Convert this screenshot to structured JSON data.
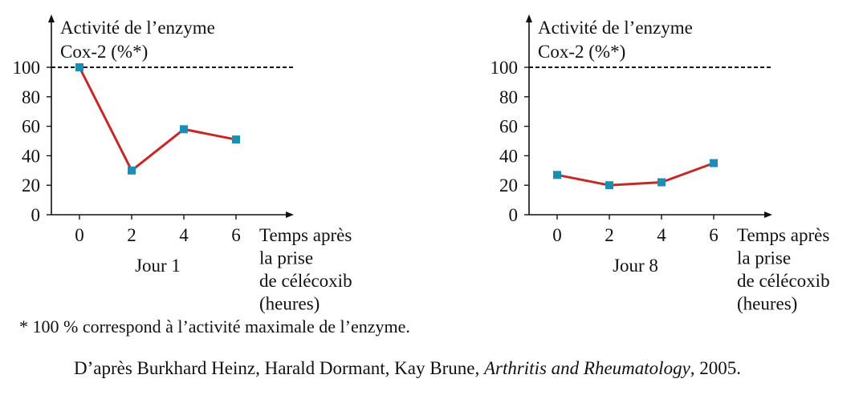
{
  "chart_data": [
    {
      "type": "line",
      "ylabel_line1": "Activité de l’enzyme",
      "ylabel_line2": "Cox-2 (%*)",
      "xlabel_lines": [
        "Temps après",
        "la prise",
        "de célécoxib",
        "(heures)"
      ],
      "caption": "Jour 1",
      "x": [
        0,
        2,
        4,
        6
      ],
      "y": [
        100,
        30,
        58,
        51
      ],
      "x_ticks": [
        "0",
        "2",
        "4",
        "6"
      ],
      "y_ticks": [
        "0",
        "20",
        "40",
        "60",
        "80",
        "100"
      ],
      "ylim": [
        0,
        100
      ],
      "reference_line": 100,
      "line_color": "#c62828",
      "marker_color": "#1a8fb3"
    },
    {
      "type": "line",
      "ylabel_line1": "Activité de l’enzyme",
      "ylabel_line2": "Cox-2 (%*)",
      "xlabel_lines": [
        "Temps après",
        "la prise",
        "de célécoxib",
        "(heures)"
      ],
      "caption": "Jour 8",
      "x": [
        0,
        2,
        4,
        6
      ],
      "y": [
        27,
        20,
        22,
        35
      ],
      "x_ticks": [
        "0",
        "2",
        "4",
        "6"
      ],
      "y_ticks": [
        "0",
        "20",
        "40",
        "60",
        "80",
        "100"
      ],
      "ylim": [
        0,
        100
      ],
      "reference_line": 100,
      "line_color": "#c62828",
      "marker_color": "#1a8fb3"
    }
  ],
  "footnote": "* 100 % correspond à l’activité maximale de l’enzyme.",
  "source": {
    "prefix": "D’après Burkhard Heinz, Harald Dormant, Kay Brune, ",
    "journal": "Arthritis and Rheumatology",
    "suffix": ", 2005."
  }
}
